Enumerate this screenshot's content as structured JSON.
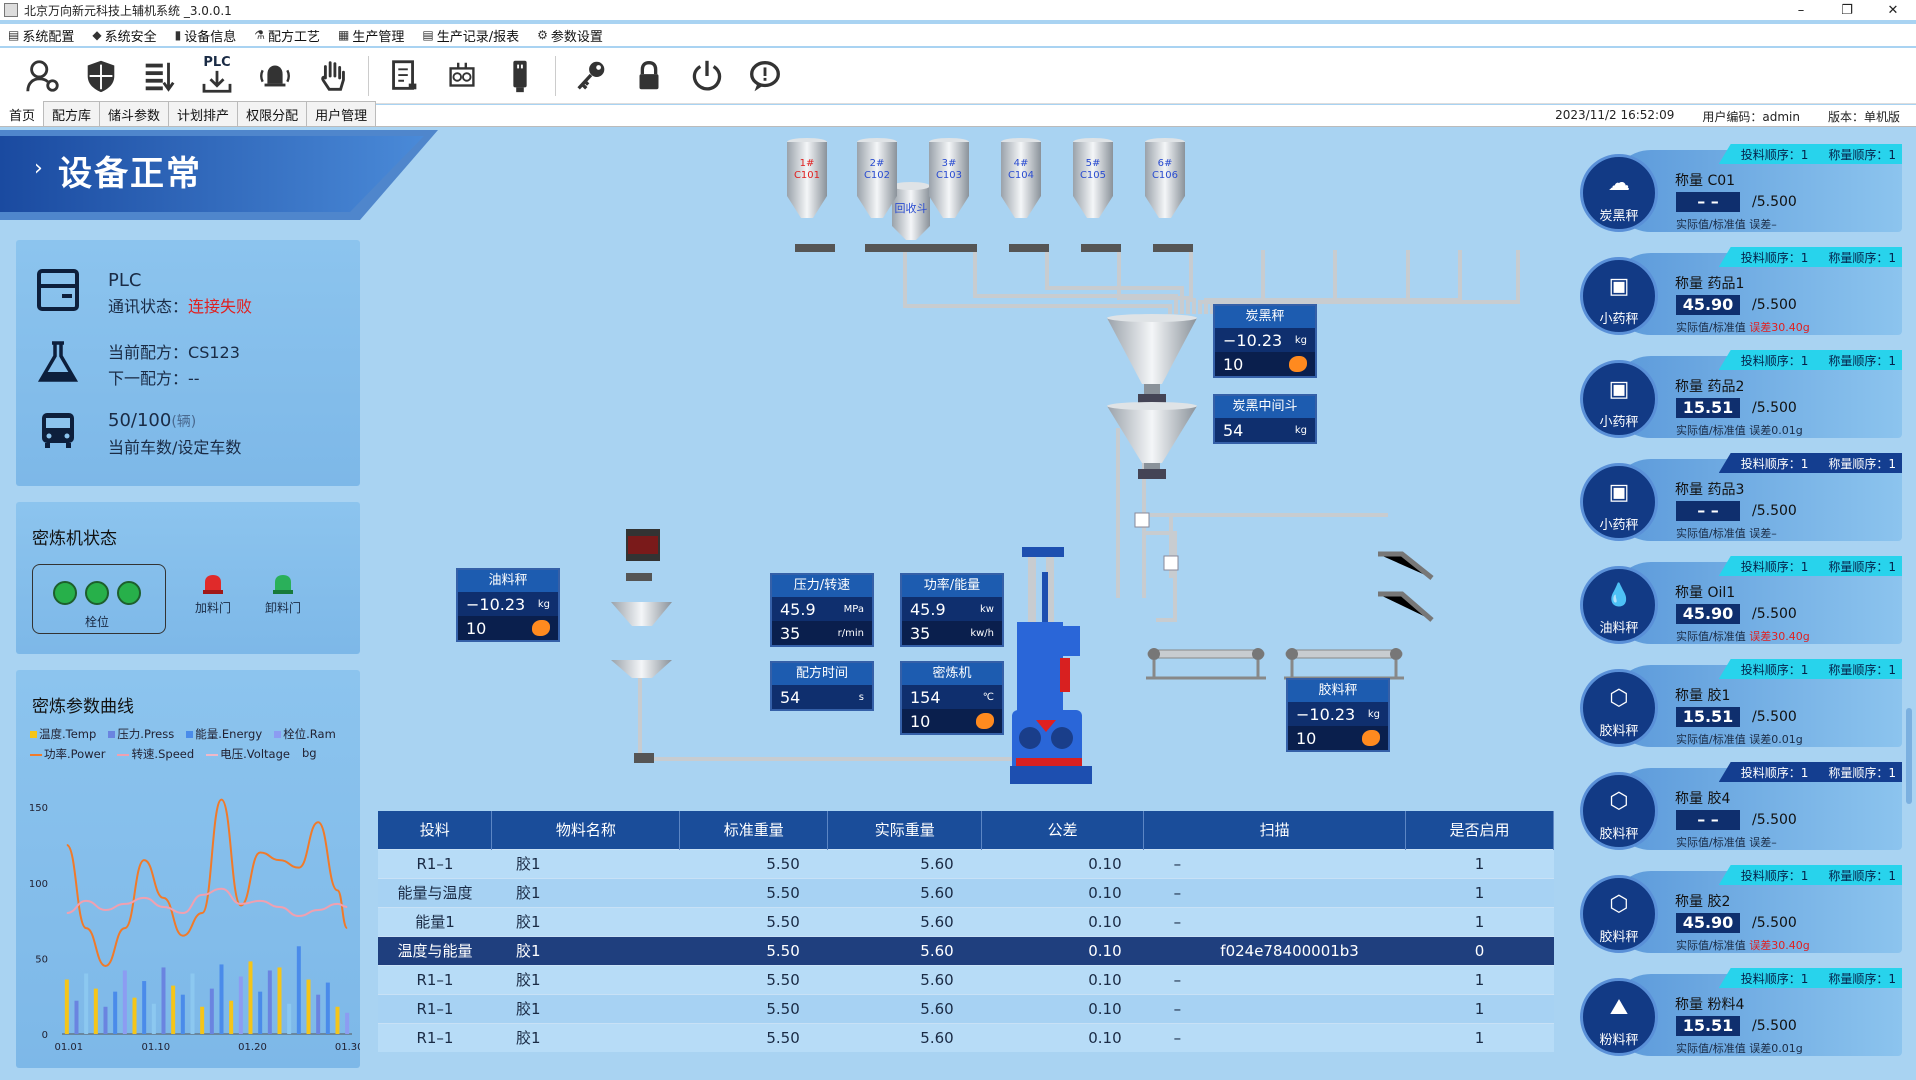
{
  "window": {
    "title": "北京万向新元科技上辅机系统 _3.0.0.1",
    "controls": [
      "–",
      "❐",
      "✕"
    ]
  },
  "menu": [
    {
      "label": "系统配置",
      "icon": "settings-icon"
    },
    {
      "label": "系统安全",
      "icon": "shield-icon"
    },
    {
      "label": "设备信息",
      "icon": "info-icon"
    },
    {
      "label": "配方工艺",
      "icon": "recipe-icon"
    },
    {
      "label": "生产管理",
      "icon": "production-icon"
    },
    {
      "label": "生产记录/报表",
      "icon": "report-icon"
    },
    {
      "label": "参数设置",
      "icon": "gear-icon"
    }
  ],
  "toolbar": {
    "plc_label": "PLC",
    "buttons": [
      "user-settings-icon",
      "shield-icon",
      "sort-icon",
      "plc-download-icon",
      "alarm-bell-icon",
      "stop-hand-icon",
      "report-doc-icon",
      "machine-icon",
      "usb-drive-icon",
      "key-icon",
      "lock-icon",
      "power-icon",
      "chat-icon"
    ]
  },
  "tabs": [
    "首页",
    "配方库",
    "储斗参数",
    "计划排产",
    "权限分配",
    "用户管理"
  ],
  "status": {
    "datetime": "2023/11/2 16:52:09",
    "user": "用户编码：admin",
    "version": "版本：单机版"
  },
  "banner": {
    "text": "设备正常",
    "chevron": "›"
  },
  "plc": {
    "title": "PLC",
    "comm_label": "通讯状态：",
    "comm_value": "连接失败",
    "current_recipe_label": "当前配方：",
    "current_recipe": "CS123",
    "next_recipe_label": "下一配方：",
    "next_recipe": "--",
    "count": "50/100",
    "count_unit": "(辆)",
    "count_label": "当前车数/设定车数"
  },
  "mixer": {
    "title": "密炼机状态",
    "position_label": "栓位",
    "feed_door": "加料门",
    "unload_door": "卸料门"
  },
  "curve": {
    "title": "密炼参数曲线",
    "legend1": [
      {
        "name": "温度.Temp",
        "color": "#f5c518"
      },
      {
        "name": "压力.Press",
        "color": "#6a84e0"
      },
      {
        "name": "能量.Energy",
        "color": "#4a8bea"
      },
      {
        "name": "栓位.Ram",
        "color": "#8c9cf2"
      }
    ],
    "legend2": [
      {
        "name": "功率.Power",
        "color": "#f07a2a"
      },
      {
        "name": "转速.Speed",
        "color": "#f0a0b0"
      },
      {
        "name": "电压.Voltage",
        "color": "#f0b8c8"
      },
      {
        "name": "bg",
        "color": "#b0b0b0"
      }
    ]
  },
  "chart_data": {
    "type": "bar",
    "title": "密炼参数曲线",
    "xlabel": "",
    "ylabel": "",
    "ylim": [
      0,
      160
    ],
    "yticks": [
      0,
      50,
      100,
      150
    ],
    "xticks": [
      "01.01",
      "01.10",
      "01.20",
      "01.30"
    ],
    "bars": [
      {
        "x": 1,
        "v": 36,
        "c": "#f5c518"
      },
      {
        "x": 2,
        "v": 22,
        "c": "#6a84e0"
      },
      {
        "x": 3,
        "v": 40,
        "c": "#8cc8f0"
      },
      {
        "x": 4,
        "v": 30,
        "c": "#f5c518"
      },
      {
        "x": 5,
        "v": 18,
        "c": "#6a84e0"
      },
      {
        "x": 6,
        "v": 28,
        "c": "#4a8bea"
      },
      {
        "x": 7,
        "v": 42,
        "c": "#8c9cf2"
      },
      {
        "x": 8,
        "v": 24,
        "c": "#f5c518"
      },
      {
        "x": 9,
        "v": 35,
        "c": "#4a8bea"
      },
      {
        "x": 10,
        "v": 20,
        "c": "#8cc8f0"
      },
      {
        "x": 11,
        "v": 44,
        "c": "#6a84e0"
      },
      {
        "x": 12,
        "v": 32,
        "c": "#f5c518"
      },
      {
        "x": 13,
        "v": 26,
        "c": "#4a8bea"
      },
      {
        "x": 14,
        "v": 40,
        "c": "#8cc8f0"
      },
      {
        "x": 15,
        "v": 18,
        "c": "#f5c518"
      },
      {
        "x": 16,
        "v": 30,
        "c": "#6a84e0"
      },
      {
        "x": 17,
        "v": 46,
        "c": "#4a8bea"
      },
      {
        "x": 18,
        "v": 22,
        "c": "#f5c518"
      },
      {
        "x": 19,
        "v": 38,
        "c": "#8c9cf2"
      },
      {
        "x": 20,
        "v": 48,
        "c": "#f5c518"
      },
      {
        "x": 21,
        "v": 28,
        "c": "#4a8bea"
      },
      {
        "x": 22,
        "v": 42,
        "c": "#6a84e0"
      },
      {
        "x": 23,
        "v": 44,
        "c": "#f5c518"
      },
      {
        "x": 24,
        "v": 20,
        "c": "#8cc8f0"
      },
      {
        "x": 25,
        "v": 58,
        "c": "#4a8bea"
      },
      {
        "x": 26,
        "v": 36,
        "c": "#f5c518"
      },
      {
        "x": 27,
        "v": 26,
        "c": "#6a84e0"
      },
      {
        "x": 28,
        "v": 34,
        "c": "#4a8bea"
      },
      {
        "x": 29,
        "v": 18,
        "c": "#f5c518"
      },
      {
        "x": 30,
        "v": 14,
        "c": "#8c9cf2"
      }
    ],
    "series": [
      {
        "name": "功率.Power",
        "color": "#f07a2a",
        "x": [
          1,
          3,
          5,
          7,
          9,
          11,
          13,
          15,
          17,
          19,
          21,
          23,
          25,
          27,
          29,
          30
        ],
        "values": [
          125,
          70,
          45,
          70,
          115,
          90,
          65,
          80,
          155,
          85,
          120,
          115,
          110,
          140,
          95,
          70
        ]
      },
      {
        "name": "转速.Speed",
        "color": "#f0a0b0",
        "x": [
          1,
          3,
          5,
          7,
          9,
          11,
          13,
          15,
          17,
          19,
          21,
          23,
          25,
          27,
          29,
          30
        ],
        "values": [
          80,
          88,
          82,
          86,
          90,
          84,
          80,
          92,
          96,
          86,
          88,
          84,
          78,
          82,
          86,
          84
        ]
      }
    ]
  },
  "hoppers": {
    "recycle": "回收斗",
    "silos": [
      {
        "num": "1#",
        "code": "C101",
        "color": "#e02020"
      },
      {
        "num": "2#",
        "code": "C102",
        "color": "#2a4cd0"
      },
      {
        "num": "3#",
        "code": "C103",
        "color": "#2a4cd0"
      },
      {
        "num": "4#",
        "code": "C104",
        "color": "#2a4cd0"
      },
      {
        "num": "5#",
        "code": "C105",
        "color": "#2a4cd0"
      },
      {
        "num": "6#",
        "code": "C106",
        "color": "#2a4cd0"
      }
    ]
  },
  "cards": {
    "carbon_scale": {
      "title": "炭黑秤",
      "value": "−10.23",
      "unit": "kg",
      "count": "10"
    },
    "carbon_mid": {
      "title": "炭黑中间斗",
      "value": "54",
      "unit": "kg"
    },
    "oil_scale": {
      "title": "油料秤",
      "value": "−10.23",
      "unit": "kg",
      "count": "10"
    },
    "press_speed": {
      "title": "压力/转速",
      "press": "45.9",
      "press_unit": "MPa",
      "speed": "35",
      "speed_unit": "r/min"
    },
    "power_energy": {
      "title": "功率/能量",
      "power": "45.9",
      "power_unit": "kw",
      "energy": "35",
      "energy_unit": "kw/h"
    },
    "mix_time": {
      "title": "配方时间",
      "value": "54",
      "unit": "s"
    },
    "mixer": {
      "title": "密炼机",
      "value": "154",
      "unit": "℃",
      "count": "10"
    },
    "rubber_scale": {
      "title": "胶料秤",
      "value": "−10.23",
      "unit": "kg",
      "count": "10"
    }
  },
  "table": {
    "headers": [
      "投料",
      "物料名称",
      "标准重量",
      "实际重量",
      "公差",
      "扫描",
      "是否启用"
    ],
    "rows": [
      [
        "R1–1",
        "胶1",
        "5.50",
        "5.60",
        "0.10",
        "–",
        "1"
      ],
      [
        "能量与温度",
        "胶1",
        "5.50",
        "5.60",
        "0.10",
        "–",
        "1"
      ],
      [
        "能量1",
        "胶1",
        "5.50",
        "5.60",
        "0.10",
        "–",
        "1"
      ],
      [
        "温度与能量",
        "胶1",
        "5.50",
        "5.60",
        "0.10",
        "f024e78400001b3",
        "0"
      ],
      [
        "R1–1",
        "胶1",
        "5.50",
        "5.60",
        "0.10",
        "–",
        "1"
      ],
      [
        "R1–1",
        "胶1",
        "5.50",
        "5.60",
        "0.10",
        "–",
        "1"
      ],
      [
        "R1–1",
        "胶1",
        "5.50",
        "5.60",
        "0.10",
        "–",
        "1"
      ]
    ],
    "selected_row": 3
  },
  "scales": [
    {
      "order_style": "cyan",
      "feed_order": "投料顺序：1",
      "weigh_order": "称量顺序：1",
      "type": "炭黑秤",
      "glyph": "☁",
      "name": "称量 C01",
      "value": "– –",
      "std": "/5.500",
      "err_label": "实际值/标准值 误差",
      "err": "–",
      "err_state": "none"
    },
    {
      "order_style": "cyan",
      "feed_order": "投料顺序：1",
      "weigh_order": "称量顺序：1",
      "type": "小药秤",
      "glyph": "▣",
      "name": "称量 药品1",
      "value": "45.90",
      "std": "/5.500",
      "err_label": "实际值/标准值 ",
      "err": "误差30.40g",
      "err_state": "bad"
    },
    {
      "order_style": "cyan",
      "feed_order": "投料顺序：1",
      "weigh_order": "称量顺序：1",
      "type": "小药秤",
      "glyph": "▣",
      "name": "称量 药品2",
      "value": "15.51",
      "std": "/5.500",
      "err_label": "实际值/标准值 ",
      "err": "误差0.01g",
      "err_state": "ok"
    },
    {
      "order_style": "dark",
      "feed_order": "投料顺序：1",
      "weigh_order": "称量顺序：1",
      "type": "小药秤",
      "glyph": "▣",
      "name": "称量 药品3",
      "value": "– –",
      "std": "/5.500",
      "err_label": "实际值/标准值 误差",
      "err": "–",
      "err_state": "none"
    },
    {
      "order_style": "cyan",
      "feed_order": "投料顺序：1",
      "weigh_order": "称量顺序：1",
      "type": "油料秤",
      "glyph": "💧",
      "name": "称量 Oil1",
      "value": "45.90",
      "std": "/5.500",
      "err_label": "实际值/标准值 ",
      "err": "误差30.40g",
      "err_state": "bad"
    },
    {
      "order_style": "cyan",
      "feed_order": "投料顺序：1",
      "weigh_order": "称量顺序：1",
      "type": "胶料秤",
      "glyph": "⬡",
      "name": "称量 胶1",
      "value": "15.51",
      "std": "/5.500",
      "err_label": "实际值/标准值 ",
      "err": "误差0.01g",
      "err_state": "ok"
    },
    {
      "order_style": "dark",
      "feed_order": "投料顺序：1",
      "weigh_order": "称量顺序：1",
      "type": "胶料秤",
      "glyph": "⬡",
      "name": "称量 胶4",
      "value": "– –",
      "std": "/5.500",
      "err_label": "实际值/标准值 误差",
      "err": "–",
      "err_state": "none"
    },
    {
      "order_style": "cyan",
      "feed_order": "投料顺序：1",
      "weigh_order": "称量顺序：1",
      "type": "胶料秤",
      "glyph": "⬡",
      "name": "称量 胶2",
      "value": "45.90",
      "std": "/5.500",
      "err_label": "实际值/标准值 ",
      "err": "误差30.40g",
      "err_state": "bad"
    },
    {
      "order_style": "cyan",
      "feed_order": "投料顺序：1",
      "weigh_order": "称量顺序：1",
      "type": "粉料秤",
      "glyph": "⛰",
      "name": "称量 粉料4",
      "value": "15.51",
      "std": "/5.500",
      "err_label": "实际值/标准值 ",
      "err": "误差0.01g",
      "err_state": "ok"
    }
  ]
}
